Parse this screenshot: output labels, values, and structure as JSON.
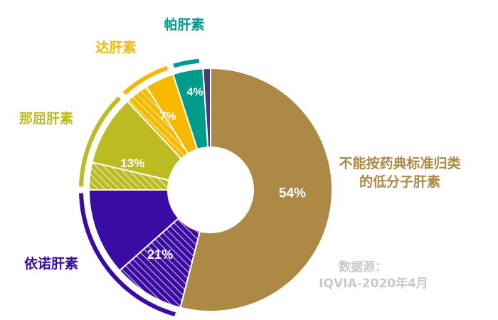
{
  "chart_data": {
    "type": "pie",
    "categories": [
      "不能按药典标准归类的低分子肝素",
      "依诺肝素",
      "那屈肝素",
      "达肝素",
      "帕肝素",
      ""
    ],
    "values": [
      54,
      21,
      13,
      7,
      4,
      1
    ],
    "value_labels": [
      "54%",
      "21%",
      "13%",
      "7%",
      "4%",
      ""
    ],
    "label_lines": [
      [
        "不能按药典标准归类",
        "的低分子肝素"
      ],
      [
        "依诺肝素"
      ],
      [
        "那屈肝素"
      ],
      [
        "达肝素"
      ],
      [
        "帕肝素"
      ],
      [
        ""
      ]
    ],
    "colors": [
      "#ac8945",
      "#3a0ca3",
      "#bdbb23",
      "#f7b900",
      "#009b8b",
      "#453b75"
    ],
    "donut": true
  },
  "source": {
    "line1": "数据源：",
    "line2": "IQVIA-2020年4月"
  }
}
